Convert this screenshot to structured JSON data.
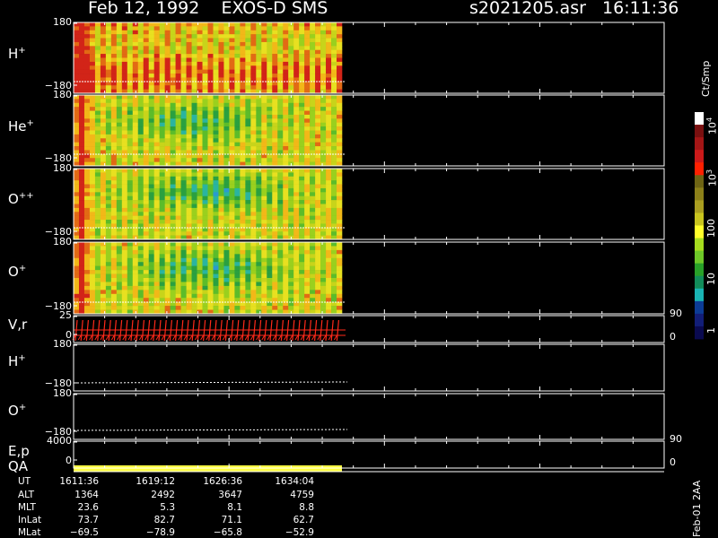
{
  "header": {
    "date": "Feb 12, 1992",
    "instrument": "EXOS-D SMS",
    "file": "s2021205.asr",
    "time": "16:11:36"
  },
  "colors": {
    "background": "#000000",
    "axes": "#ffffff",
    "vector": "#ff2a1a",
    "qa": "#ffff40"
  },
  "panels": [
    {
      "id": "h-plus",
      "label": "H",
      "sup": "+",
      "ymax": "180",
      "ymin": "−180",
      "spectrogram": "H+"
    },
    {
      "id": "he-plus",
      "label": "He",
      "sup": "+",
      "ymax": "180",
      "ymin": "−180",
      "spectrogram": "He+"
    },
    {
      "id": "o-pp",
      "label": "O",
      "sup": "++",
      "ymax": "180",
      "ymin": "−180",
      "spectrogram": "O++"
    },
    {
      "id": "o-plus",
      "label": "O",
      "sup": "+",
      "ymax": "180",
      "ymin": "−180",
      "spectrogram": "O+"
    },
    {
      "id": "vr",
      "label": "V,r",
      "sup": "",
      "ymax": "25",
      "ymin": "0",
      "rmax": "90",
      "rmin": "0"
    },
    {
      "id": "h-plus-2",
      "label": "H",
      "sup": "+",
      "ymax": "180",
      "ymin": "−180"
    },
    {
      "id": "o-plus-2",
      "label": "O",
      "sup": "+",
      "ymax": "180",
      "ymin": "−180"
    },
    {
      "id": "ep",
      "label": "E,p",
      "sup": "",
      "ymax": "4000",
      "ymin": "0",
      "rmax": "90",
      "rmin": "0"
    }
  ],
  "qa_label": "QA",
  "colorbar": {
    "title": "Ct/Smp",
    "labels": [
      {
        "text": "10",
        "sup": "4"
      },
      {
        "text": "10",
        "sup": "3"
      },
      {
        "text": "100",
        "sup": ""
      },
      {
        "text": "10",
        "sup": ""
      },
      {
        "text": "1",
        "sup": ""
      }
    ],
    "colors": [
      "#ffffff",
      "#7a1010",
      "#a41616",
      "#cc1a1a",
      "#ff2000",
      "#6e6414",
      "#8c8019",
      "#aa9e20",
      "#c8c41e",
      "#ffff2a",
      "#a6dc1e",
      "#6ec828",
      "#28a028",
      "#128c5a",
      "#1ab4b4",
      "#0c3c96",
      "#121e78",
      "#0a0a50"
    ]
  },
  "footer": {
    "rows": [
      {
        "label": "UT",
        "values": [
          "1611:36",
          "1619:12",
          "1626:36",
          "1634:04"
        ]
      },
      {
        "label": "ALT",
        "values": [
          "1364",
          "2492",
          "3647",
          "4759"
        ]
      },
      {
        "label": "MLT",
        "values": [
          "23.6",
          "5.3",
          "8.1",
          "8.8"
        ]
      },
      {
        "label": "InLat",
        "values": [
          "73.7",
          "82.7",
          "71.1",
          "62.7"
        ]
      },
      {
        "label": "MLat",
        "values": [
          "−69.5",
          "−78.9",
          "−65.8",
          "−52.9"
        ]
      }
    ],
    "version": "Feb-01 2AA"
  },
  "chart_data": {
    "type": "heatmap",
    "title": "Feb 12, 1992   EXOS-D SMS",
    "subtitle": "s2021205.asr  16:11:36",
    "x_ticks_ut": [
      "1611:36",
      "1619:12",
      "1626:36",
      "1634:04"
    ],
    "series": [
      {
        "name": "H+",
        "ylim": [
          -180,
          180
        ]
      },
      {
        "name": "He+",
        "ylim": [
          -180,
          180
        ]
      },
      {
        "name": "O++",
        "ylim": [
          -180,
          180
        ]
      },
      {
        "name": "O+",
        "ylim": [
          -180,
          180
        ]
      },
      {
        "name": "V,r",
        "ylim": [
          0,
          25
        ],
        "right_ylim": [
          0,
          90
        ]
      },
      {
        "name": "H+",
        "ylim": [
          -180,
          180
        ]
      },
      {
        "name": "O+",
        "ylim": [
          -180,
          180
        ]
      },
      {
        "name": "E,p",
        "ylim": [
          0,
          4000
        ],
        "right_ylim": [
          0,
          90
        ]
      }
    ],
    "colorbar": {
      "label": "Ct/Smp",
      "scale": "log",
      "range": [
        1,
        10000
      ]
    },
    "legend": "right"
  }
}
